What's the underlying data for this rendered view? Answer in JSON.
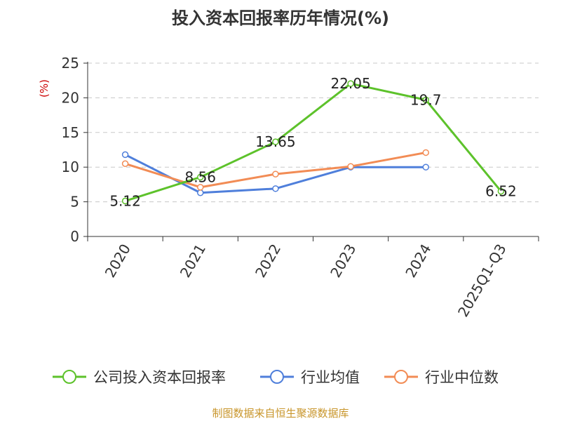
{
  "chart_data": {
    "type": "line",
    "title": "投入资本回报率历年情况(%)",
    "ylabel": "(%)",
    "xlabel": "",
    "categories": [
      "2020",
      "2021",
      "2022",
      "2023",
      "2024",
      "2025Q1-Q3"
    ],
    "ylim": [
      0,
      25
    ],
    "yticks": [
      0,
      5,
      10,
      15,
      20,
      25
    ],
    "grid": true,
    "legend_position": "bottom",
    "series": [
      {
        "name": "公司投入资本回报率",
        "color": "#5dc22b",
        "values": [
          5.12,
          8.56,
          13.65,
          22.05,
          19.7,
          6.52
        ],
        "labels": [
          "5.12",
          "8.56",
          "13.65",
          "22.05",
          "19.7",
          "6.52"
        ]
      },
      {
        "name": "行业均值",
        "color": "#4f7fdb",
        "values": [
          11.8,
          6.3,
          6.9,
          10.0,
          10.0,
          null
        ]
      },
      {
        "name": "行业中位数",
        "color": "#f28c55",
        "values": [
          10.5,
          7.1,
          9.0,
          10.1,
          12.1,
          null
        ]
      }
    ]
  },
  "footer": "制图数据来自恒生聚源数据库"
}
